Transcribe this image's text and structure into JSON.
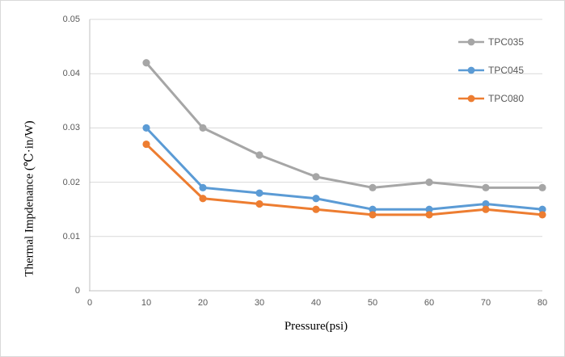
{
  "frame": {
    "background": "#FFFFFF",
    "border_color": "#D9D9D9"
  },
  "chart_data": {
    "type": "line",
    "title": "",
    "xlabel": "Pressure(psi)",
    "ylabel": "Thermal Impdenance (℃·in/W)",
    "x": [
      10,
      20,
      30,
      40,
      50,
      60,
      70,
      80
    ],
    "xlim": [
      0,
      80
    ],
    "ylim": [
      0,
      0.05
    ],
    "x_tick_values": [
      0,
      10,
      20,
      30,
      40,
      50,
      60,
      70,
      80
    ],
    "x_tick_labels": [
      "0",
      "10",
      "20",
      "30",
      "40",
      "50",
      "60",
      "70",
      "80"
    ],
    "y_tick_values": [
      0,
      0.01,
      0.02,
      0.03,
      0.04,
      0.05
    ],
    "y_tick_labels": [
      "0",
      "0.01",
      "0.02",
      "0.03",
      "0.04",
      "0.05"
    ],
    "grid": "horizontal gridlines on, vertical off",
    "legend_position": "top-right inside plot, transparent background",
    "marker": "circle",
    "series": [
      {
        "name": "TPC035",
        "color": "#A6A6A6",
        "values": [
          0.042,
          0.03,
          0.025,
          0.021,
          0.019,
          0.02,
          0.019,
          0.019
        ]
      },
      {
        "name": "TPC045",
        "color": "#5B9BD5",
        "values": [
          0.03,
          0.019,
          0.018,
          0.017,
          0.015,
          0.015,
          0.016,
          0.015
        ]
      },
      {
        "name": "TPC080",
        "color": "#ED7D31",
        "values": [
          0.027,
          0.017,
          0.016,
          0.015,
          0.014,
          0.014,
          0.015,
          0.014
        ]
      }
    ],
    "styles": {
      "gridline_color": "#D9D9D9",
      "axis_line_color": "#C0C0C0",
      "tick_label_color": "#595959",
      "legend_label_color": "#595959",
      "axis_title_color": "#000000"
    }
  }
}
